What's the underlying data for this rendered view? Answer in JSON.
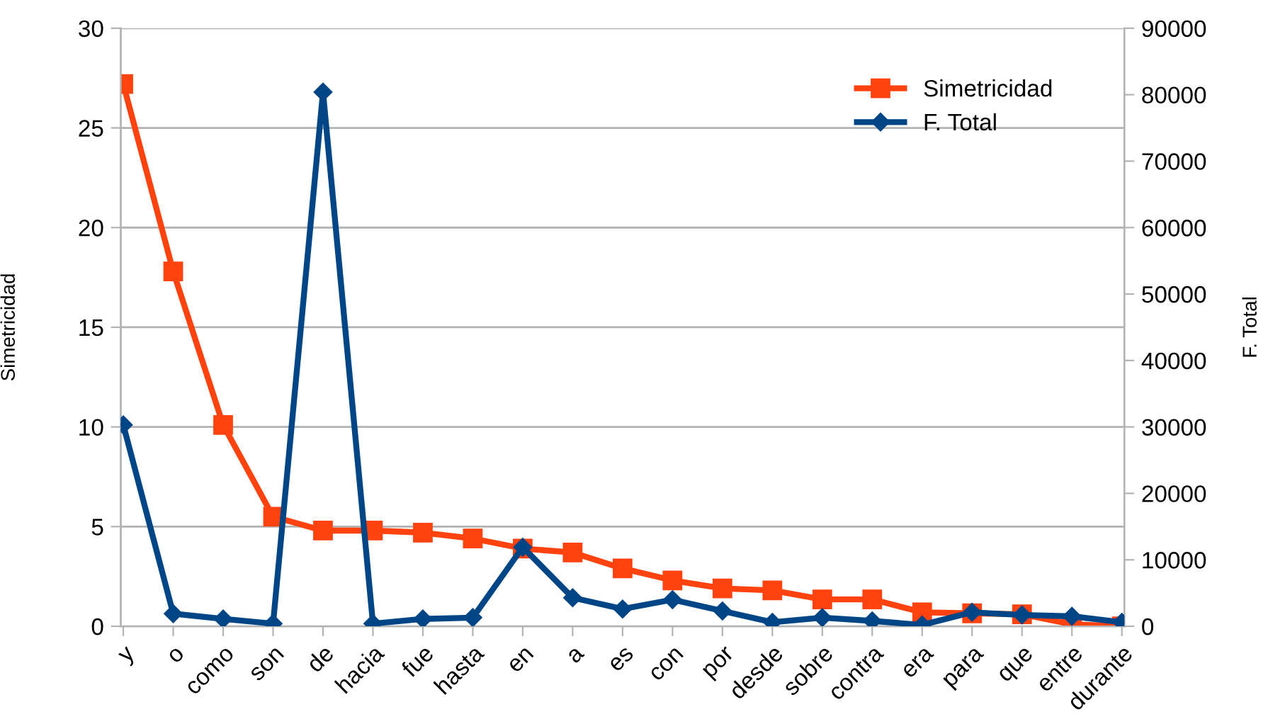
{
  "chart_data": {
    "type": "line",
    "ylabel": "Simetricidad",
    "y2label": "F. Total",
    "categories": [
      "y",
      "o",
      "como",
      "son",
      "de",
      "hacia",
      "fue",
      "hasta",
      "en",
      "a",
      "es",
      "con",
      "por",
      "desde",
      "sobre",
      "contra",
      "era",
      "para",
      "que",
      "entre",
      "durante"
    ],
    "series": [
      {
        "name": "Simetricidad",
        "color": "#ff420e",
        "marker": "square",
        "values": [
          27.2,
          17.8,
          10.1,
          5.5,
          4.8,
          4.8,
          4.7,
          4.4,
          3.9,
          3.7,
          2.9,
          2.3,
          1.9,
          1.8,
          1.35,
          1.35,
          0.7,
          0.65,
          0.6,
          0.1,
          0
        ]
      },
      {
        "name": "F. Total",
        "color": "#004586",
        "marker": "diamond",
        "axis": "y2",
        "values": [
          30300,
          1900,
          1100,
          400,
          80400,
          400,
          1100,
          1300,
          11900,
          4300,
          2600,
          4000,
          2300,
          600,
          1300,
          800,
          200,
          2100,
          1700,
          1500,
          600
        ]
      }
    ],
    "ylim": [
      0,
      30
    ],
    "yticks": [
      0,
      5,
      10,
      15,
      20,
      25,
      30
    ],
    "y2lim": [
      0,
      90000
    ],
    "y2ticks": [
      0,
      10000,
      20000,
      30000,
      40000,
      50000,
      60000,
      70000,
      80000,
      90000
    ],
    "grid": "y",
    "legend": "top right",
    "line_style": "solid"
  }
}
